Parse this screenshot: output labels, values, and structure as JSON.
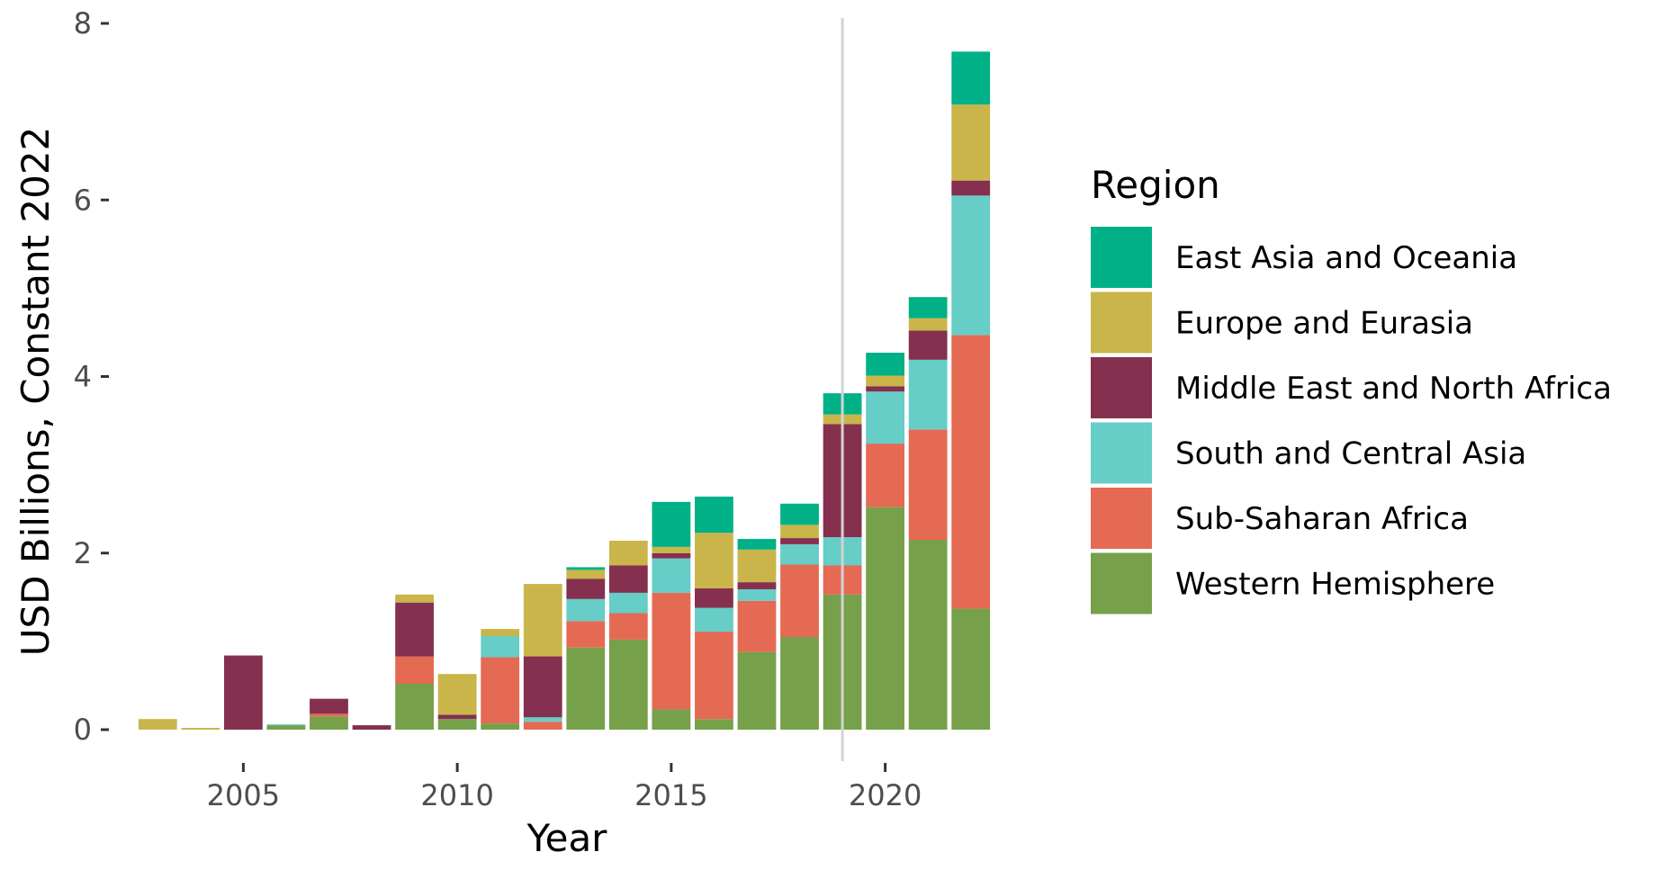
{
  "chart_data": {
    "type": "bar",
    "stacked": true,
    "xlabel": "Year",
    "ylabel": "USD Billions, Constant 2022",
    "ylim": [
      0,
      8
    ],
    "xlim": [
      2002.3,
      2022.7
    ],
    "y_ticks": [
      "0",
      "2",
      "4",
      "6",
      "8"
    ],
    "x_ticks": [
      "2005",
      "2010",
      "2015",
      "2020"
    ],
    "reference_line_x": 2019,
    "grid": false,
    "legend": {
      "title": "Region",
      "placement": "right"
    },
    "categories": [
      2003,
      2004,
      2005,
      2006,
      2007,
      2008,
      2009,
      2010,
      2011,
      2012,
      2013,
      2014,
      2015,
      2016,
      2017,
      2018,
      2019,
      2020,
      2021,
      2022
    ],
    "series": [
      {
        "name": "Western Hemisphere",
        "color": "#76A04A",
        "values": [
          0,
          0,
          0,
          0.05,
          0.15,
          0,
          0.52,
          0.12,
          0.07,
          0,
          0.93,
          1.02,
          0.23,
          0.12,
          0.88,
          1.05,
          1.53,
          2.52,
          2.15,
          1.37
        ]
      },
      {
        "name": "Sub-Saharan Africa",
        "color": "#E46A54",
        "values": [
          0,
          0,
          0,
          0,
          0.03,
          0,
          0.31,
          0,
          0.75,
          0.09,
          0.3,
          0.3,
          1.32,
          0.99,
          0.58,
          0.82,
          0.33,
          0.72,
          1.25,
          3.1
        ]
      },
      {
        "name": "South and Central Asia",
        "color": "#66CDC7",
        "values": [
          0,
          0,
          0,
          0.01,
          0,
          0,
          0,
          0,
          0.24,
          0.05,
          0.25,
          0.23,
          0.39,
          0.27,
          0.13,
          0.23,
          0.32,
          0.59,
          0.79,
          1.58
        ]
      },
      {
        "name": "Middle East and North Africa",
        "color": "#85304E",
        "values": [
          0,
          0,
          0.84,
          0,
          0.17,
          0.05,
          0.61,
          0.05,
          0,
          0.69,
          0.23,
          0.31,
          0.06,
          0.22,
          0.08,
          0.07,
          1.28,
          0.06,
          0.33,
          0.17
        ]
      },
      {
        "name": "Europe and Eurasia",
        "color": "#C9B54A",
        "values": [
          0.12,
          0.02,
          0,
          0,
          0,
          0,
          0.09,
          0.46,
          0.08,
          0.82,
          0.1,
          0.28,
          0.07,
          0.63,
          0.37,
          0.15,
          0.11,
          0.12,
          0.14,
          0.86
        ]
      },
      {
        "name": "East Asia and Oceania",
        "color": "#00B187",
        "values": [
          0,
          0,
          0,
          0,
          0,
          0,
          0,
          0,
          0,
          0,
          0.03,
          0,
          0.51,
          0.41,
          0.12,
          0.24,
          0.24,
          0.26,
          0.24,
          0.6
        ]
      }
    ]
  }
}
